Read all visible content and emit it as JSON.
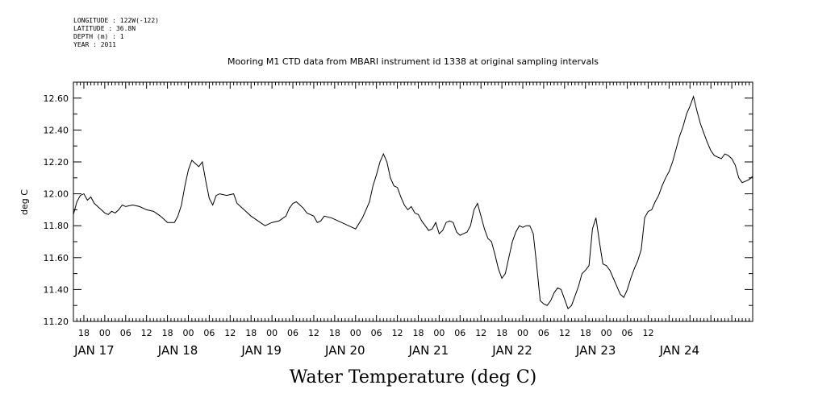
{
  "header": {
    "meta_lines": [
      "LONGITUDE : 122W(-122)",
      "LATITUDE : 36.8N",
      "DEPTH (m) : 1",
      "YEAR : 2011"
    ]
  },
  "chart_data": {
    "type": "line",
    "title": "Mooring M1 CTD data from MBARI instrument id 1338 at original sampling intervals",
    "xlabel": "Water Temperature (deg C)",
    "ylabel": "deg C",
    "ylim": [
      11.2,
      12.7
    ],
    "xlim_hours": [
      -9,
      186
    ],
    "y_ticks": [
      "11.20",
      "11.40",
      "11.60",
      "11.80",
      "12.00",
      "12.20",
      "12.40",
      "12.60"
    ],
    "x_hour_ticks": [
      "18",
      "00",
      "06",
      "12",
      "18",
      "00",
      "06",
      "12",
      "18",
      "00",
      "06",
      "12",
      "18",
      "00",
      "06",
      "12",
      "18",
      "00",
      "06",
      "12",
      "18",
      "00",
      "06",
      "12",
      "18",
      "00",
      "06",
      "12"
    ],
    "x_date_labels": [
      "JAN 17",
      "JAN 18",
      "JAN 19",
      "JAN 20",
      "JAN 21",
      "JAN 22",
      "JAN 23",
      "JAN 24"
    ],
    "series": [
      {
        "color": "#000000",
        "points": [
          [
            -9,
            11.87
          ],
          [
            -8,
            11.95
          ],
          [
            -7,
            11.99
          ],
          [
            -6,
            12.0
          ],
          [
            -5,
            11.96
          ],
          [
            -4,
            11.98
          ],
          [
            -3,
            11.94
          ],
          [
            -2,
            11.92
          ],
          [
            -1,
            11.9
          ],
          [
            0,
            11.88
          ],
          [
            1,
            11.87
          ],
          [
            2,
            11.89
          ],
          [
            3,
            11.88
          ],
          [
            4,
            11.9
          ],
          [
            5,
            11.93
          ],
          [
            6,
            11.92
          ],
          [
            8,
            11.93
          ],
          [
            10,
            11.92
          ],
          [
            12,
            11.9
          ],
          [
            14,
            11.89
          ],
          [
            16,
            11.86
          ],
          [
            17,
            11.84
          ],
          [
            18,
            11.82
          ],
          [
            20,
            11.82
          ],
          [
            21,
            11.86
          ],
          [
            22,
            11.93
          ],
          [
            23,
            12.05
          ],
          [
            24,
            12.15
          ],
          [
            25,
            12.21
          ],
          [
            26,
            12.19
          ],
          [
            27,
            12.17
          ],
          [
            28,
            12.2
          ],
          [
            29,
            12.08
          ],
          [
            30,
            11.97
          ],
          [
            31,
            11.93
          ],
          [
            32,
            11.99
          ],
          [
            33,
            12.0
          ],
          [
            35,
            11.99
          ],
          [
            37,
            12.0
          ],
          [
            38,
            11.94
          ],
          [
            40,
            11.9
          ],
          [
            42,
            11.86
          ],
          [
            44,
            11.83
          ],
          [
            46,
            11.8
          ],
          [
            48,
            11.82
          ],
          [
            50,
            11.83
          ],
          [
            52,
            11.86
          ],
          [
            53,
            11.91
          ],
          [
            54,
            11.94
          ],
          [
            55,
            11.95
          ],
          [
            56,
            11.93
          ],
          [
            57,
            11.91
          ],
          [
            58,
            11.88
          ],
          [
            60,
            11.86
          ],
          [
            61,
            11.82
          ],
          [
            62,
            11.83
          ],
          [
            63,
            11.86
          ],
          [
            65,
            11.85
          ],
          [
            67,
            11.83
          ],
          [
            69,
            11.81
          ],
          [
            71,
            11.79
          ],
          [
            72,
            11.78
          ],
          [
            74,
            11.85
          ],
          [
            76,
            11.95
          ],
          [
            77,
            12.05
          ],
          [
            78,
            12.12
          ],
          [
            79,
            12.2
          ],
          [
            80,
            12.25
          ],
          [
            81,
            12.2
          ],
          [
            82,
            12.1
          ],
          [
            83,
            12.05
          ],
          [
            84,
            12.04
          ],
          [
            85,
            11.98
          ],
          [
            86,
            11.93
          ],
          [
            87,
            11.9
          ],
          [
            88,
            11.92
          ],
          [
            89,
            11.88
          ],
          [
            90,
            11.87
          ],
          [
            91,
            11.83
          ],
          [
            92,
            11.8
          ],
          [
            93,
            11.77
          ],
          [
            94,
            11.78
          ],
          [
            95,
            11.82
          ],
          [
            96,
            11.75
          ],
          [
            97,
            11.77
          ],
          [
            98,
            11.82
          ],
          [
            99,
            11.83
          ],
          [
            100,
            11.82
          ],
          [
            101,
            11.76
          ],
          [
            102,
            11.74
          ],
          [
            103,
            11.75
          ],
          [
            104,
            11.76
          ],
          [
            105,
            11.8
          ],
          [
            106,
            11.9
          ],
          [
            107,
            11.94
          ],
          [
            108,
            11.86
          ],
          [
            109,
            11.78
          ],
          [
            110,
            11.72
          ],
          [
            111,
            11.7
          ],
          [
            112,
            11.62
          ],
          [
            113,
            11.53
          ],
          [
            114,
            11.47
          ],
          [
            115,
            11.5
          ],
          [
            116,
            11.6
          ],
          [
            117,
            11.7
          ],
          [
            118,
            11.76
          ],
          [
            119,
            11.8
          ],
          [
            120,
            11.79
          ],
          [
            121,
            11.8
          ],
          [
            122,
            11.8
          ],
          [
            123,
            11.75
          ],
          [
            124,
            11.55
          ],
          [
            125,
            11.33
          ],
          [
            126,
            11.31
          ],
          [
            127,
            11.3
          ],
          [
            128,
            11.33
          ],
          [
            129,
            11.38
          ],
          [
            130,
            11.41
          ],
          [
            131,
            11.4
          ],
          [
            132,
            11.34
          ],
          [
            133,
            11.28
          ],
          [
            134,
            11.3
          ],
          [
            135,
            11.36
          ],
          [
            136,
            11.42
          ],
          [
            137,
            11.5
          ],
          [
            138,
            11.52
          ],
          [
            139,
            11.55
          ],
          [
            140,
            11.78
          ],
          [
            141,
            11.85
          ],
          [
            142,
            11.7
          ],
          [
            143,
            11.56
          ],
          [
            144,
            11.55
          ],
          [
            145,
            11.52
          ],
          [
            146,
            11.47
          ],
          [
            147,
            11.42
          ],
          [
            148,
            11.37
          ],
          [
            149,
            11.35
          ],
          [
            150,
            11.4
          ],
          [
            151,
            11.47
          ],
          [
            152,
            11.53
          ],
          [
            153,
            11.58
          ],
          [
            154,
            11.65
          ],
          [
            155,
            11.85
          ],
          [
            156,
            11.89
          ],
          [
            157,
            11.9
          ],
          [
            158,
            11.95
          ],
          [
            159,
            11.99
          ],
          [
            160,
            12.05
          ],
          [
            161,
            12.1
          ],
          [
            162,
            12.14
          ],
          [
            163,
            12.2
          ],
          [
            164,
            12.28
          ],
          [
            165,
            12.36
          ],
          [
            166,
            12.42
          ],
          [
            167,
            12.5
          ],
          [
            168,
            12.55
          ],
          [
            169,
            12.61
          ],
          [
            170,
            12.52
          ],
          [
            171,
            12.44
          ],
          [
            172,
            12.38
          ],
          [
            173,
            12.32
          ],
          [
            174,
            12.27
          ],
          [
            175,
            12.24
          ],
          [
            176,
            12.23
          ],
          [
            177,
            12.22
          ],
          [
            178,
            12.25
          ],
          [
            179,
            12.24
          ],
          [
            180,
            12.22
          ],
          [
            181,
            12.18
          ],
          [
            182,
            12.1
          ],
          [
            183,
            12.07
          ],
          [
            184,
            12.08
          ],
          [
            185,
            12.09
          ],
          [
            186,
            12.11
          ]
        ]
      }
    ]
  }
}
